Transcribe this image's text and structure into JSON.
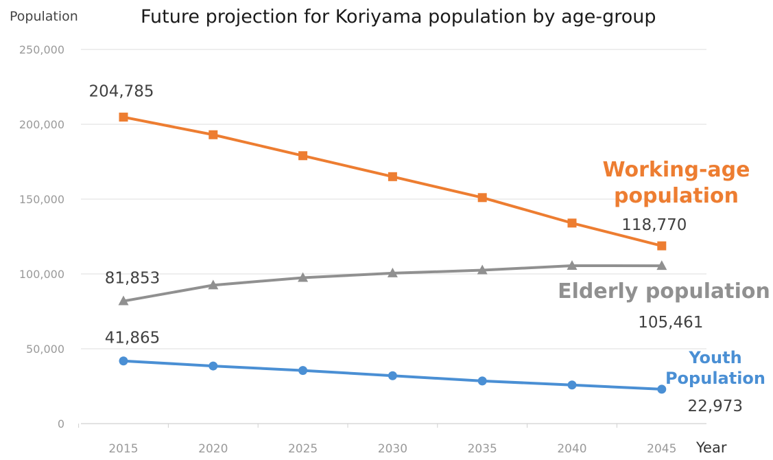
{
  "chart_data": {
    "type": "line",
    "title": "Future projection for Koriyama population by age-group",
    "ylabel": "Population",
    "xlabel": "Year",
    "ylim": [
      0,
      250000
    ],
    "yticks": [
      0,
      50000,
      100000,
      150000,
      200000,
      250000
    ],
    "ytick_labels": [
      "0",
      "50,000",
      "100,000",
      "150,000",
      "200,000",
      "250,000"
    ],
    "categories": [
      "2015",
      "2020",
      "2025",
      "2030",
      "2035",
      "2040",
      "2045"
    ],
    "grid": "horizontal",
    "series": [
      {
        "name": "Working-age population",
        "label_lines": [
          "Working-age",
          "population"
        ],
        "color": "#ed7d31",
        "marker": "square",
        "values": [
          204785,
          193000,
          179000,
          165000,
          151000,
          134000,
          118770
        ],
        "data_labels": [
          {
            "index": 0,
            "text": "204,785"
          },
          {
            "index": 6,
            "text": "118,770"
          }
        ]
      },
      {
        "name": "Elderly population",
        "label_lines": [
          "Elderly population"
        ],
        "color": "#909090",
        "marker": "triangle",
        "values": [
          81853,
          92500,
          97500,
          100500,
          102500,
          105500,
          105461
        ],
        "data_labels": [
          {
            "index": 0,
            "text": "81,853"
          },
          {
            "index": 6,
            "text": "105,461"
          }
        ]
      },
      {
        "name": "Youth Population",
        "label_lines": [
          "Youth",
          "Population"
        ],
        "color": "#4a8fd4",
        "marker": "circle",
        "values": [
          41865,
          38500,
          35500,
          32000,
          28500,
          25800,
          22973
        ],
        "data_labels": [
          {
            "index": 0,
            "text": "41,865"
          },
          {
            "index": 6,
            "text": "22,973"
          }
        ]
      }
    ]
  }
}
